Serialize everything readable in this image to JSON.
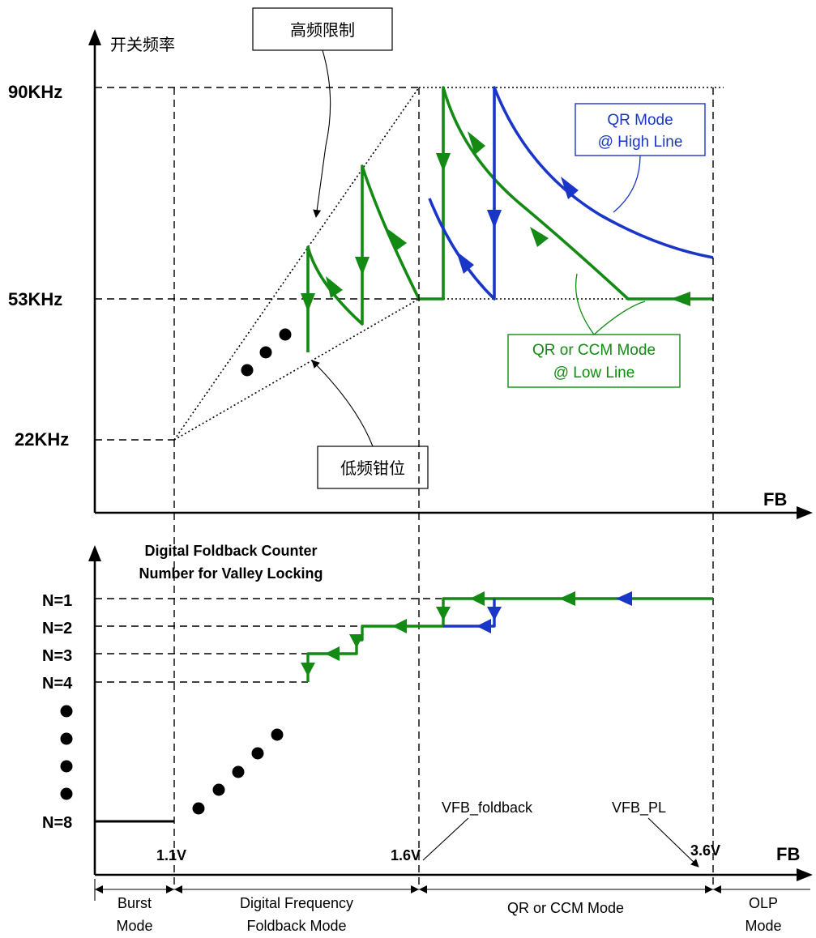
{
  "top": {
    "y_axis_title": "开关频率",
    "x_axis_label": "FB",
    "freq_labels": {
      "f90": "90KHz",
      "f53": "53KHz",
      "f22": "22KHz"
    },
    "callouts": {
      "high_limit": "高频限制",
      "low_clamp": "低频钳位",
      "qr_high_line_1": "QR Mode",
      "qr_high_line_2": "@ High Line",
      "qr_low_line_1": "QR or CCM Mode",
      "qr_low_line_2": "@ Low Line"
    }
  },
  "bottom": {
    "title_1": "Digital Foldback Counter",
    "title_2": "Number for Valley Locking",
    "x_axis_label": "FB",
    "n_labels": [
      "N=1",
      "N=2",
      "N=3",
      "N=4",
      "N=8"
    ],
    "voltages": {
      "v11": "1.1V",
      "v16": "1.6V",
      "v36": "3.6V"
    },
    "annotations": {
      "vfb_foldback": "VFB_foldback",
      "vfb_pl": "VFB_PL"
    },
    "modes": {
      "burst_1": "Burst",
      "burst_2": "Mode",
      "dff_1": "Digital Frequency",
      "dff_2": "Foldback Mode",
      "qr_ccm": "QR or CCM Mode",
      "olp_1": "OLP",
      "olp_2": "Mode"
    }
  },
  "colors": {
    "green": "#138a13",
    "blue": "#1a36c9",
    "callout_green_box": "#138a13",
    "callout_blue_box": "#1a36c9"
  }
}
